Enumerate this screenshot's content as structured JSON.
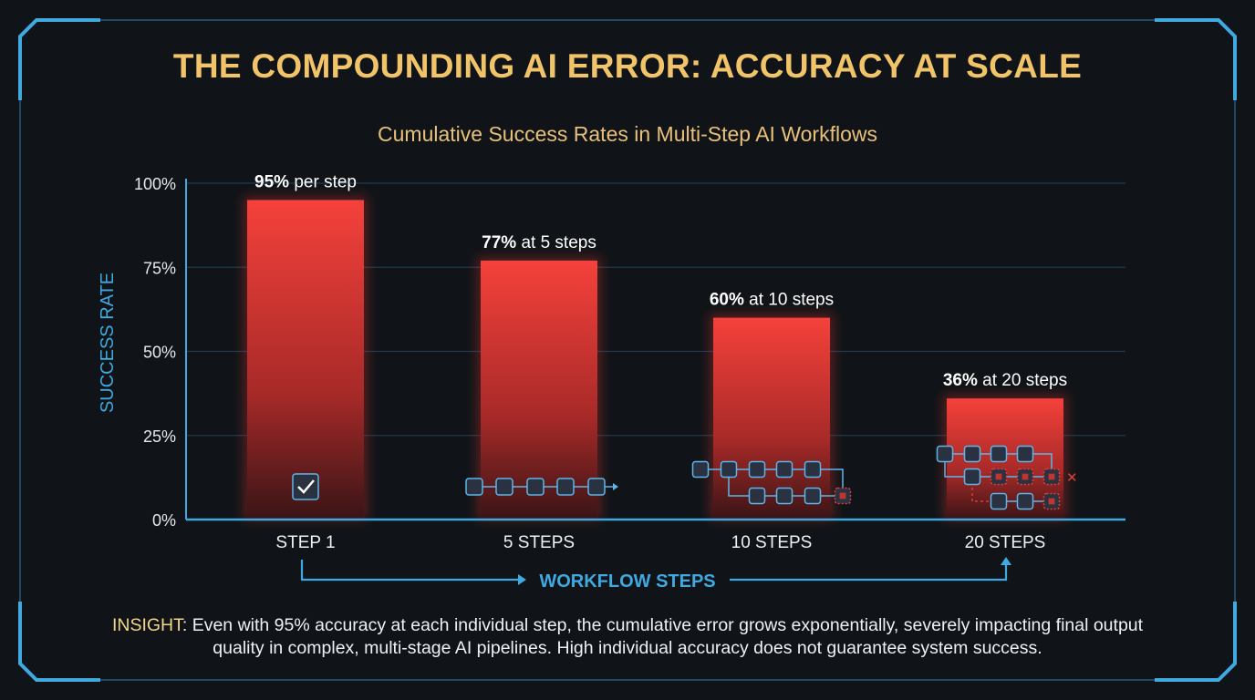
{
  "title": "THE COMPOUNDING AI ERROR: ACCURACY AT SCALE",
  "subtitle": "Cumulative Success Rates in Multi-Step AI Workflows",
  "insight": {
    "label": "INSIGHT",
    "text": ": Even with 95% accuracy at each individual step, the cumulative error grows exponentially, severely impacting final output quality in complex, multi-stage AI pipelines. High individual accuracy does not guarantee system success."
  },
  "colors": {
    "bar": "#f03a35",
    "axis": "#3fa9e0",
    "title": "#f2c46a",
    "background": "#101418"
  },
  "chart_data": {
    "type": "bar",
    "title": "Cumulative Success Rates in Multi-Step AI Workflows",
    "xlabel": "WORKFLOW STEPS",
    "ylabel": "SUCCESS RATE",
    "ylim": [
      0,
      100
    ],
    "yticks": [
      "0%",
      "25%",
      "50%",
      "75%",
      "100%"
    ],
    "ytick_values": [
      0,
      25,
      50,
      75,
      100
    ],
    "grid": true,
    "categories": [
      "STEP 1",
      "5 STEPS",
      "10 STEPS",
      "20 STEPS"
    ],
    "values": [
      95,
      77,
      60,
      36
    ],
    "data_labels": [
      {
        "value": "95%",
        "suffix": " per step"
      },
      {
        "value": "77%",
        "suffix": " at 5 steps"
      },
      {
        "value": "60%",
        "suffix": " at 10 steps"
      },
      {
        "value": "36%",
        "suffix": " at 20 steps"
      }
    ],
    "icons": [
      "chip-check-icon",
      "chip-chain-icon",
      "chip-branch-error-icon",
      "chip-network-error-icon"
    ]
  }
}
